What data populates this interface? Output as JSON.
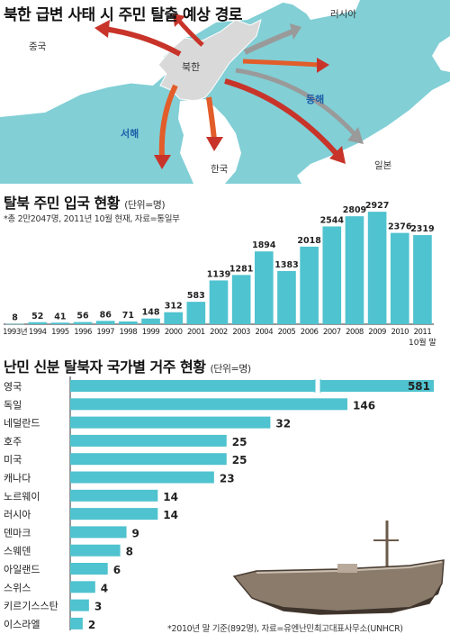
{
  "map": {
    "title": "북한 급변 사태 시 주민 탈출 예상 경로",
    "labels": {
      "china": "중국",
      "russia": "러시아",
      "north_korea": "북한",
      "east_sea": "동해",
      "west_sea": "서해",
      "south_korea": "한국",
      "japan": "일본"
    },
    "colors": {
      "sea": "#82cfd6",
      "land": "#ffffff",
      "north_korea": "#d9d9d9",
      "arrow_orange": "#f29a2e",
      "arrow_red": "#c8342a",
      "arrow_grey": "#9a9a9a"
    }
  },
  "entries": {
    "title": "탈북 주민 입국 현황",
    "unit": "(단위=명)",
    "note": "*총 2만2047명, 2011년 10월 현재, 자료=통일부",
    "extra_label": "10월 말",
    "color": "#4fc3cf"
  },
  "refugees": {
    "title": "난민 신분 탈북자 국가별 거주 현황",
    "unit": "(단위=명)",
    "note": "*2010년 말 기준(892명), 자료=유엔난민최고대표사무소(UNHCR)",
    "color": "#4fc3cf"
  },
  "chart_data": [
    {
      "type": "bar",
      "title": "탈북 주민 입국 현황",
      "ylabel": "(단위=명)",
      "categories": [
        "1993년",
        "1994",
        "1995",
        "1996",
        "1997",
        "1998",
        "1999",
        "2000",
        "2001",
        "2002",
        "2003",
        "2004",
        "2005",
        "2006",
        "2007",
        "2008",
        "2009",
        "2010",
        "2011"
      ],
      "values": [
        8,
        52,
        41,
        56,
        86,
        71,
        148,
        312,
        583,
        1139,
        1281,
        1894,
        1383,
        2018,
        2544,
        2809,
        2927,
        2376,
        2319
      ],
      "ylim": [
        0,
        3000
      ]
    },
    {
      "type": "bar",
      "orientation": "horizontal",
      "title": "난민 신분 탈북자 국가별 거주 현황",
      "ylabel": "(단위=명)",
      "categories": [
        "영국",
        "독일",
        "네덜란드",
        "호주",
        "미국",
        "캐나다",
        "노르웨이",
        "러시아",
        "덴마크",
        "스웨덴",
        "아일랜드",
        "스위스",
        "키르기스스탄",
        "이스라엘"
      ],
      "values": [
        581,
        146,
        32,
        25,
        25,
        23,
        14,
        14,
        9,
        8,
        6,
        4,
        3,
        2
      ],
      "axis_break": true
    }
  ]
}
